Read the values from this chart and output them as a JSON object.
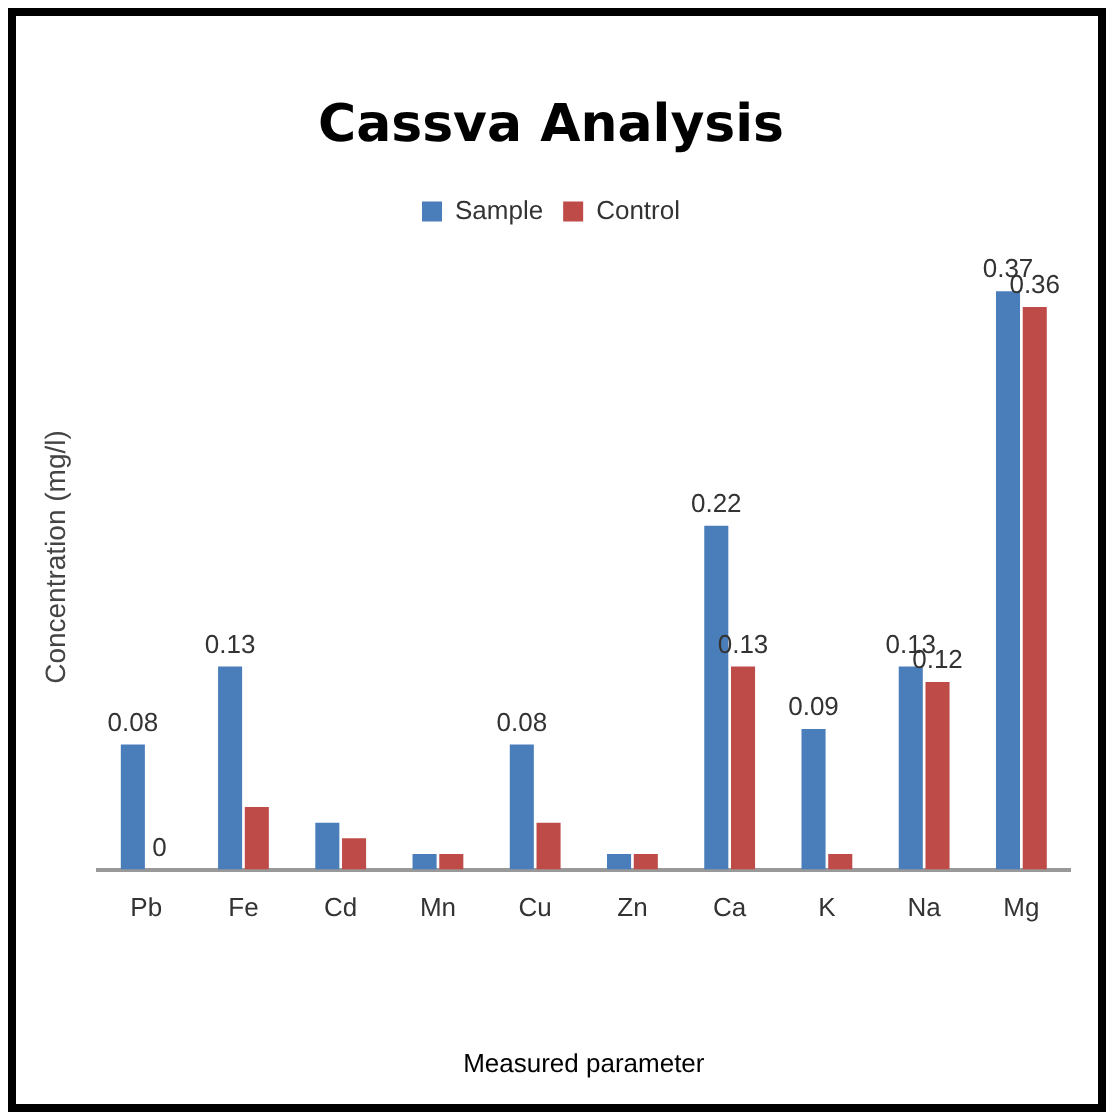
{
  "chart_data": {
    "type": "bar",
    "title": "Cassva Analysis",
    "xlabel": "Measured parameter",
    "ylabel": "Concentration (mg/l)",
    "categories": [
      "Pb",
      "Fe",
      "Cd",
      "Mn",
      "Cu",
      "Zn",
      "Ca",
      "K",
      "Na",
      "Mg"
    ],
    "series": [
      {
        "name": "Sample",
        "color": "#4a7ebb",
        "values": [
          0.08,
          0.13,
          0.03,
          0.01,
          0.08,
          0.01,
          0.22,
          0.09,
          0.13,
          0.37
        ],
        "value_labels": [
          "0.08",
          "0.13",
          null,
          null,
          "0.08",
          null,
          "0.22",
          "0.09",
          "0.13",
          "0.37"
        ]
      },
      {
        "name": "Control",
        "color": "#be4b48",
        "values": [
          0,
          0.04,
          0.02,
          0.01,
          0.03,
          0.01,
          0.13,
          0.01,
          0.12,
          0.36
        ],
        "value_labels": [
          "0",
          null,
          null,
          null,
          null,
          null,
          "0.13",
          null,
          "0.12",
          "0.36"
        ]
      }
    ],
    "legend": "top",
    "grid": false
  }
}
